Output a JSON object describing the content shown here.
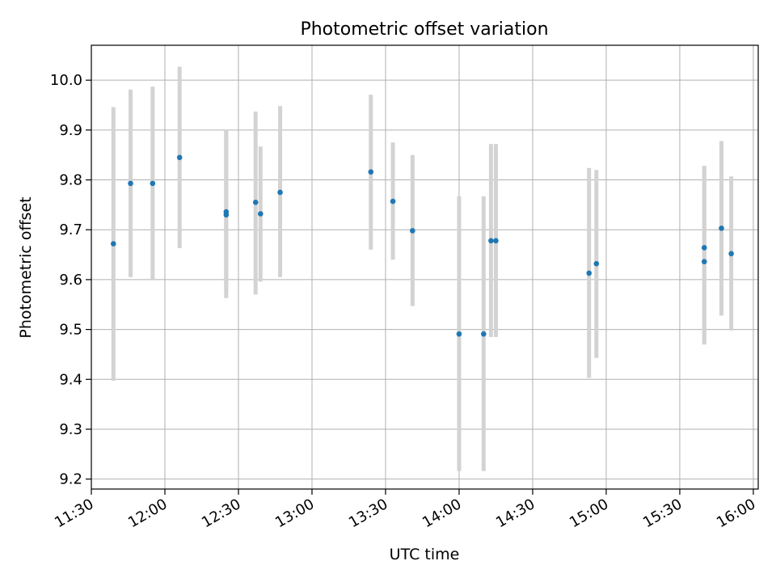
{
  "chart_data": {
    "type": "scatter",
    "title": "Photometric offset variation",
    "xlabel": "UTC time",
    "ylabel": "Photometric offset",
    "x_tick_labels": [
      "11:30",
      "12:00",
      "12:30",
      "13:00",
      "13:30",
      "14:00",
      "14:30",
      "15:00",
      "15:30",
      "16:00"
    ],
    "y_tick_labels": [
      "9.2",
      "9.3",
      "9.4",
      "9.5",
      "9.6",
      "9.7",
      "9.8",
      "9.9",
      "10.0"
    ],
    "xlim": [
      "11:30",
      "16:02"
    ],
    "ylim": [
      9.18,
      10.07
    ],
    "grid": true,
    "marker_color": "#1f77b4",
    "errorbar_color": "#d3d3d3",
    "points": [
      {
        "x": "11:39",
        "y": 9.672,
        "ylo": 9.397,
        "yhi": 9.946
      },
      {
        "x": "11:46",
        "y": 9.793,
        "ylo": 9.605,
        "yhi": 9.981
      },
      {
        "x": "11:55",
        "y": 9.793,
        "ylo": 9.6,
        "yhi": 9.987
      },
      {
        "x": "12:06",
        "y": 9.845,
        "ylo": 9.663,
        "yhi": 10.027
      },
      {
        "x": "12:25",
        "y": 9.73,
        "ylo": 9.563,
        "yhi": 9.9
      },
      {
        "x": "12:25",
        "y": 9.736,
        "ylo": 9.573,
        "yhi": 9.9
      },
      {
        "x": "12:37",
        "y": 9.755,
        "ylo": 9.57,
        "yhi": 9.937
      },
      {
        "x": "12:39",
        "y": 9.732,
        "ylo": 9.596,
        "yhi": 9.867
      },
      {
        "x": "12:47",
        "y": 9.775,
        "ylo": 9.605,
        "yhi": 9.948
      },
      {
        "x": "13:24",
        "y": 9.816,
        "ylo": 9.66,
        "yhi": 9.971
      },
      {
        "x": "13:33",
        "y": 9.757,
        "ylo": 9.64,
        "yhi": 9.875
      },
      {
        "x": "13:41",
        "y": 9.698,
        "ylo": 9.547,
        "yhi": 9.85
      },
      {
        "x": "14:00",
        "y": 9.491,
        "ylo": 9.216,
        "yhi": 9.767
      },
      {
        "x": "14:10",
        "y": 9.491,
        "ylo": 9.216,
        "yhi": 9.767
      },
      {
        "x": "14:13",
        "y": 9.678,
        "ylo": 9.485,
        "yhi": 9.872
      },
      {
        "x": "14:15",
        "y": 9.678,
        "ylo": 9.485,
        "yhi": 9.872
      },
      {
        "x": "14:53",
        "y": 9.613,
        "ylo": 9.403,
        "yhi": 9.824
      },
      {
        "x": "14:56",
        "y": 9.632,
        "ylo": 9.443,
        "yhi": 9.82
      },
      {
        "x": "15:40",
        "y": 9.636,
        "ylo": 9.47,
        "yhi": 9.828
      },
      {
        "x": "15:40",
        "y": 9.664,
        "ylo": 9.47,
        "yhi": 9.828
      },
      {
        "x": "15:47",
        "y": 9.703,
        "ylo": 9.528,
        "yhi": 9.878
      },
      {
        "x": "15:51",
        "y": 9.652,
        "ylo": 9.498,
        "yhi": 9.807
      }
    ]
  }
}
